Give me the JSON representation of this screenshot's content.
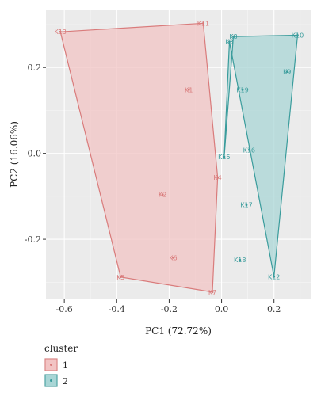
{
  "chart_data": {
    "type": "scatter",
    "xlabel": "PC1 (72.72%)",
    "ylabel": "PC2 (16.06%)",
    "xlim": [
      -0.67,
      0.34
    ],
    "ylim": [
      -0.34,
      0.335
    ],
    "x_ticks": [
      -0.6,
      -0.4,
      -0.2,
      0.0,
      0.2
    ],
    "x_tick_labels": [
      "-0.6",
      "-0.4",
      "-0.2",
      "0.0",
      "0.2"
    ],
    "y_ticks": [
      -0.2,
      0.0,
      0.2
    ],
    "y_tick_labels": [
      "-0.2",
      "0.0",
      "0.2"
    ],
    "grid": true,
    "legend": {
      "title": "cluster",
      "position": "bottom-left",
      "entries": [
        {
          "label": "1",
          "fill": "#f2c4c4",
          "stroke": "#d97b7b"
        },
        {
          "label": "2",
          "fill": "#a9d6d6",
          "stroke": "#3a9c9c"
        }
      ]
    },
    "series": [
      {
        "name": "1",
        "color": "#d97b7b",
        "fill": "#f2c4c4",
        "hull": [
          "K13",
          "K11",
          "K4",
          "K7",
          "K5"
        ],
        "points": [
          {
            "label": "K13",
            "x": -0.615,
            "y": 0.283
          },
          {
            "label": "K11",
            "x": -0.07,
            "y": 0.303
          },
          {
            "label": "K1",
            "x": -0.125,
            "y": 0.148
          },
          {
            "label": "K4",
            "x": -0.015,
            "y": -0.056
          },
          {
            "label": "K2",
            "x": -0.225,
            "y": -0.096
          },
          {
            "label": "K6",
            "x": -0.185,
            "y": -0.243
          },
          {
            "label": "K5",
            "x": -0.385,
            "y": -0.288
          },
          {
            "label": "K7",
            "x": -0.035,
            "y": -0.323
          }
        ]
      },
      {
        "name": "2",
        "color": "#3a9c9c",
        "fill": "#a9d6d6",
        "hull": [
          "K8",
          "K10",
          "K12",
          "K3",
          "K15"
        ],
        "points": [
          {
            "label": "K8",
            "x": 0.045,
            "y": 0.272
          },
          {
            "label": "K3",
            "x": 0.03,
            "y": 0.26
          },
          {
            "label": "K10",
            "x": 0.29,
            "y": 0.275
          },
          {
            "label": "K9",
            "x": 0.25,
            "y": 0.19
          },
          {
            "label": "K19",
            "x": 0.08,
            "y": 0.148
          },
          {
            "label": "K16",
            "x": 0.105,
            "y": 0.008
          },
          {
            "label": "K15",
            "x": 0.01,
            "y": -0.008
          },
          {
            "label": "K17",
            "x": 0.095,
            "y": -0.12
          },
          {
            "label": "K18",
            "x": 0.07,
            "y": -0.248
          },
          {
            "label": "K12",
            "x": 0.2,
            "y": -0.287
          }
        ]
      }
    ]
  }
}
